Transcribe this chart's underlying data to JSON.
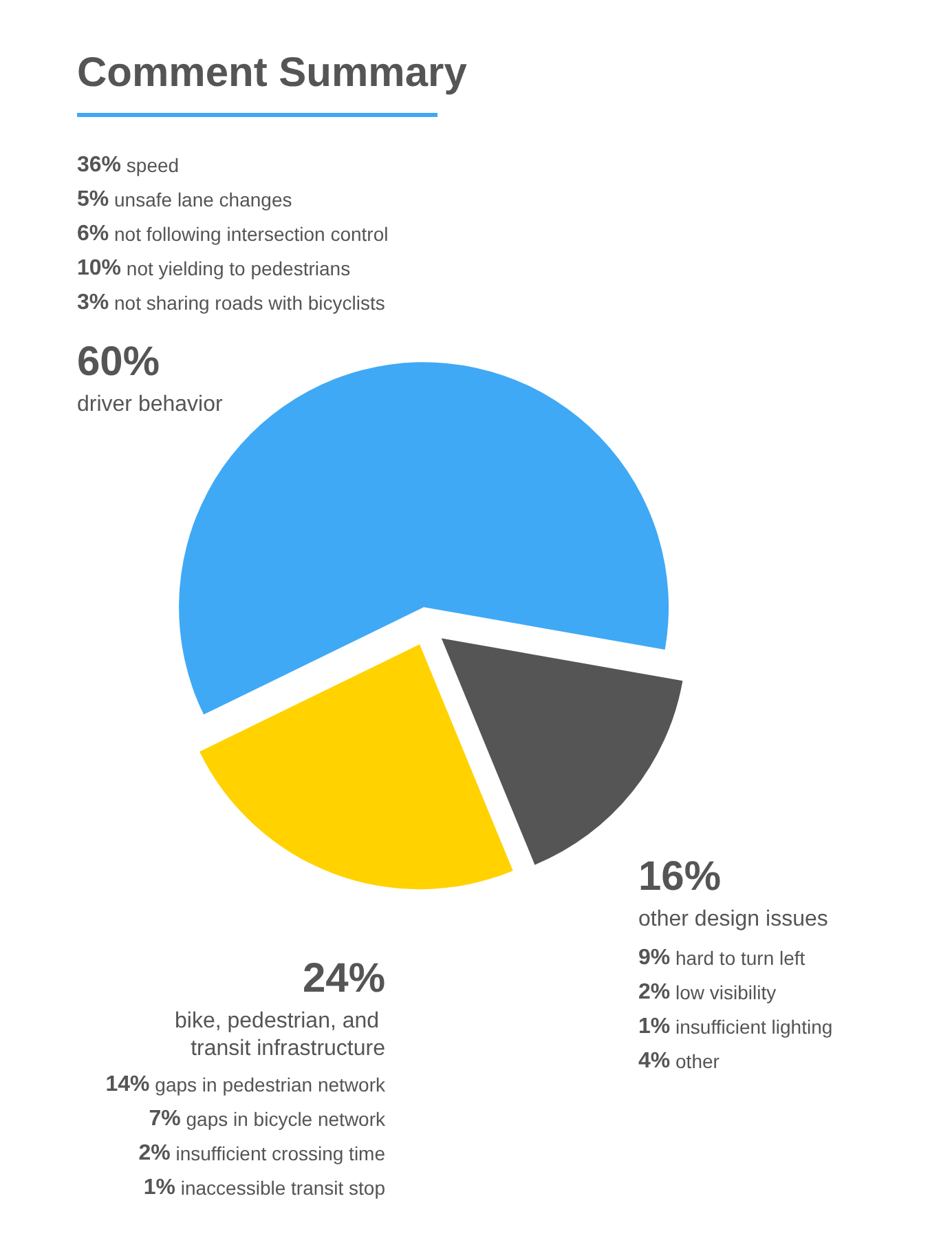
{
  "chart_data": {
    "type": "pie",
    "title": "Comment Summary",
    "categories": [
      "driver behavior",
      "other design issues",
      "bike, pedestrian, and transit infrastructure"
    ],
    "values": [
      60,
      16,
      24
    ],
    "value_labels": [
      "60%",
      "16%",
      "24%"
    ],
    "colors": [
      "#3fa9f5",
      "#555555",
      "#ffd200"
    ],
    "annotations": [
      {
        "text": "36% speed",
        "x": "driver behavior"
      },
      {
        "text": "5% unsafe lane changes",
        "x": "driver behavior"
      },
      {
        "text": "6% not following intersection control",
        "x": "driver behavior"
      },
      {
        "text": "10% not yielding to pedestrians",
        "x": "driver behavior"
      },
      {
        "text": "3% not sharing roads with bicyclists",
        "x": "driver behavior"
      },
      {
        "text": "9% hard to turn left",
        "x": "other design issues"
      },
      {
        "text": "2% low visibility",
        "x": "other design issues"
      },
      {
        "text": "1% insufficient lighting",
        "x": "other design issues"
      },
      {
        "text": "4% other",
        "x": "other design issues"
      },
      {
        "text": "14% gaps in pedestrian network",
        "x": "bike, pedestrian, and transit infrastructure"
      },
      {
        "text": "7% gaps in bicycle network",
        "x": "bike, pedestrian, and transit infrastructure"
      },
      {
        "text": "2% insufficient crossing time",
        "x": "bike, pedestrian, and transit infrastructure"
      },
      {
        "text": "1% inaccessible transit stop",
        "x": "bike, pedestrian, and transit infrastructure"
      }
    ]
  }
}
